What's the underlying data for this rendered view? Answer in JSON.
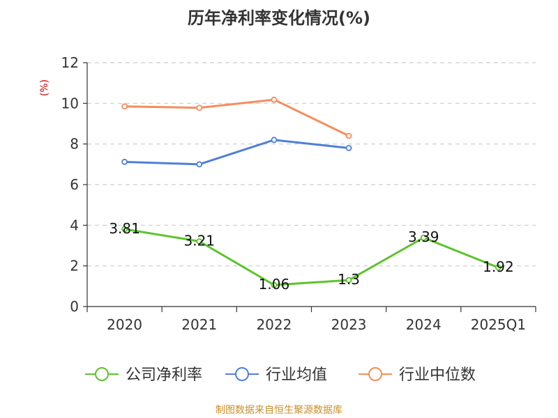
{
  "chart_data": {
    "type": "line",
    "title": "历年净利率变化情况(%)",
    "ylabel": "(%)",
    "xlabel": "",
    "categories": [
      "2020",
      "2021",
      "2022",
      "2023",
      "2024",
      "2025Q1"
    ],
    "ylim": [
      0,
      12
    ],
    "yticks": [
      0,
      2,
      4,
      6,
      8,
      10,
      12
    ],
    "grid": true,
    "legend_position": "bottom",
    "series": [
      {
        "name": "公司净利率",
        "color": "#5cc42a",
        "values": [
          3.81,
          3.21,
          1.06,
          1.3,
          3.39,
          1.92
        ],
        "labels": [
          "3.81",
          "3.21",
          "1.06",
          "1.3",
          "3.39",
          "1.92"
        ],
        "show_labels": true
      },
      {
        "name": "行业均值",
        "color": "#4f7fd8",
        "values": [
          7.12,
          7.0,
          8.2,
          7.8,
          null,
          null
        ],
        "show_labels": false
      },
      {
        "name": "行业中位数",
        "color": "#f58d5c",
        "values": [
          9.85,
          9.78,
          10.18,
          8.4,
          null,
          null
        ],
        "show_labels": false
      }
    ]
  },
  "source": "制图数据来自恒生聚源数据库"
}
